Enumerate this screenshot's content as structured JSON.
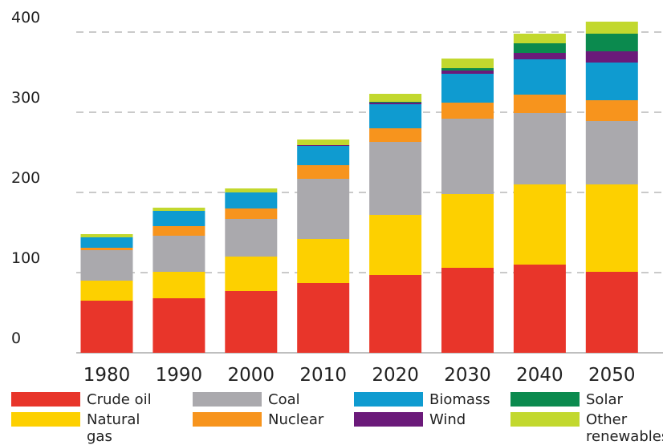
{
  "chart_data": {
    "type": "stacked-bar",
    "categories": [
      "1980",
      "1990",
      "2000",
      "2010",
      "2020",
      "2030",
      "2040",
      "2050"
    ],
    "ylim": [
      0,
      400
    ],
    "yticks": [
      0,
      100,
      200,
      300,
      400
    ],
    "grid": true,
    "series": [
      {
        "name": "Crude oil",
        "color": "#e8352a",
        "values": [
          65,
          68,
          77,
          87,
          97,
          106,
          110,
          101
        ]
      },
      {
        "name": "Natural gas",
        "color": "#fdd000",
        "values": [
          25,
          33,
          43,
          55,
          75,
          92,
          100,
          109
        ]
      },
      {
        "name": "Coal",
        "color": "#aaa9ad",
        "values": [
          38,
          45,
          47,
          75,
          91,
          94,
          89,
          79
        ]
      },
      {
        "name": "Nuclear",
        "color": "#f7941d",
        "values": [
          3,
          12,
          13,
          17,
          17,
          20,
          23,
          26
        ]
      },
      {
        "name": "Biomass",
        "color": "#0f9bd0",
        "values": [
          13,
          19,
          20,
          24,
          30,
          36,
          44,
          47
        ]
      },
      {
        "name": "Wind",
        "color": "#6b1a7a",
        "values": [
          0,
          0,
          0,
          1,
          2,
          4,
          8,
          14
        ]
      },
      {
        "name": "Solar",
        "color": "#0b8a4e",
        "values": [
          0,
          0,
          0,
          0,
          1,
          3,
          12,
          22
        ]
      },
      {
        "name": "Other renewables",
        "color": "#c2d82e",
        "values": [
          4,
          4,
          5,
          7,
          10,
          12,
          12,
          15
        ]
      }
    ]
  }
}
